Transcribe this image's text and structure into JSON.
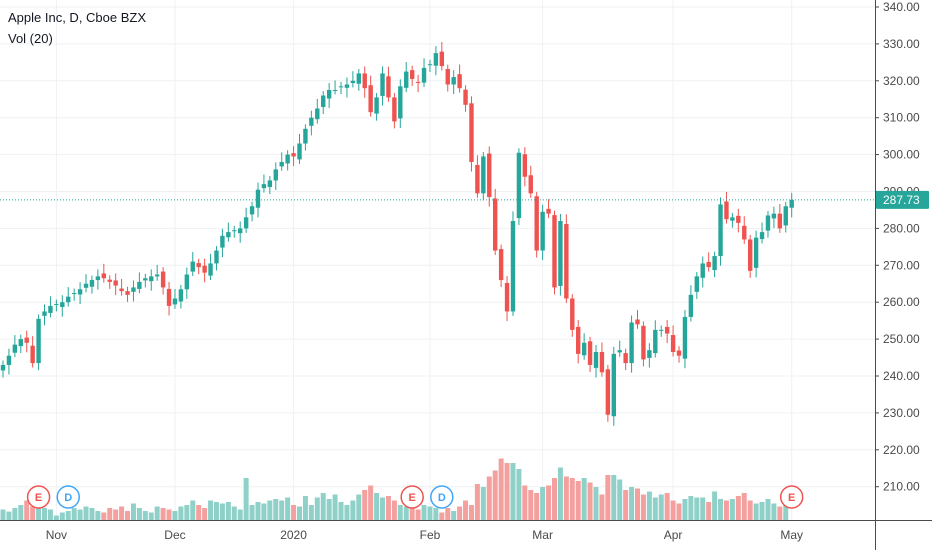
{
  "legend": {
    "symbol_line": "Apple Inc, D, Cboe BZX",
    "indicator_line": "Vol (20)"
  },
  "colors": {
    "up": "#26a69a",
    "down": "#ef5350",
    "volume_up": "#8fd1c8",
    "volume_down": "#f4a09e",
    "grid": "#eef1f4",
    "axis_text": "#4a4a4a",
    "last_price_line": "#26a69a",
    "dividend_event": "#42a5f5",
    "earnings_event": "#ef5350"
  },
  "chart_data": {
    "type": "candlestick",
    "title": "Apple Inc, D, Cboe BZX",
    "y_axis": {
      "range": [
        200,
        343
      ],
      "ticks": [
        "210.00",
        "220.00",
        "230.00",
        "240.00",
        "250.00",
        "260.00",
        "270.00",
        "280.00",
        "290.00",
        "300.00",
        "310.00",
        "320.00",
        "330.00",
        "340.00"
      ],
      "position": "right"
    },
    "x_axis": {
      "ticks": [
        {
          "label": "Nov",
          "bar": 9
        },
        {
          "label": "Dec",
          "bar": 29
        },
        {
          "label": "2020",
          "bar": 49
        },
        {
          "label": "Feb",
          "bar": 72
        },
        {
          "label": "Mar",
          "bar": 91
        },
        {
          "label": "Apr",
          "bar": 113
        },
        {
          "label": "May",
          "bar": 133
        }
      ]
    },
    "last_price": 287.73,
    "grid": true,
    "series": [
      {
        "name": "Apple Inc",
        "closes": [
          243.0,
          245.5,
          248.5,
          250.0,
          249.0,
          243.5,
          255.5,
          257.5,
          259.0,
          259.5,
          260.0,
          261.5,
          262.5,
          263.5,
          265.0,
          266.0,
          267.0,
          266.5,
          265.5,
          264.5,
          263.0,
          262.0,
          264.0,
          265.5,
          266.5,
          267.0,
          267.5,
          264.0,
          259.0,
          261.0,
          263.5,
          267.5,
          271.0,
          269.5,
          268.0,
          270.5,
          274.0,
          278.0,
          279.0,
          279.5,
          280.0,
          283.0,
          286.0,
          290.5,
          292.0,
          293.0,
          296.0,
          298.0,
          300.0,
          299.5,
          303.0,
          307.0,
          310.0,
          312.5,
          316.0,
          317.5,
          317.5,
          318.5,
          319.0,
          320.0,
          322.0,
          318.0,
          311.5,
          315.5,
          322.0,
          315.5,
          309.0,
          318.5,
          322.5,
          320.5,
          319.5,
          323.5,
          324.5,
          327.5,
          324.0,
          319.0,
          321.0,
          318.0,
          313.5,
          298.0,
          289.5,
          299.5,
          288.5,
          274.0,
          266.0,
          257.5,
          282.0,
          300.5,
          294.0,
          289.5,
          274.0,
          284.5,
          284.0,
          264.0,
          282.0,
          261.0,
          252.5,
          246.0,
          249.0,
          243.0,
          246.5,
          241.0,
          229.5,
          246.0,
          247.0,
          243.5,
          254.5,
          254.0,
          244.5,
          247.0,
          252.5,
          252.5,
          251.5,
          246.5,
          245.5,
          256.0,
          262.0,
          267.0,
          270.5,
          269.5,
          272.5,
          286.5,
          282.5,
          283.0,
          281.5,
          277.0,
          268.5,
          277.5,
          279.0,
          283.5,
          284.0,
          280.0,
          286.0,
          287.73
        ],
        "volumes": [
          20.5,
          19.8,
          21.0,
          22.0,
          23.5,
          21.5,
          22.5,
          21.0,
          20.5,
          18.5,
          19.5,
          20.0,
          21.0,
          20.5,
          21.5,
          21.0,
          20.0,
          19.5,
          21.0,
          20.5,
          21.5,
          20.0,
          22.5,
          21.0,
          20.0,
          19.5,
          21.5,
          21.0,
          20.5,
          20.0,
          21.5,
          22.0,
          23.5,
          22.0,
          21.0,
          23.5,
          23.0,
          22.5,
          23.0,
          21.5,
          20.5,
          31.0,
          22.0,
          23.0,
          22.5,
          23.5,
          24.0,
          23.5,
          24.5,
          22.0,
          21.5,
          25.0,
          22.0,
          24.5,
          26.0,
          24.0,
          25.5,
          23.0,
          22.0,
          23.5,
          25.5,
          27.0,
          28.5,
          26.0,
          24.5,
          25.0,
          23.5,
          22.0,
          21.5,
          22.5,
          20.5,
          22.0,
          21.5,
          21.0,
          19.5,
          21.0,
          20.0,
          21.5,
          23.5,
          22.0,
          29.0,
          28.0,
          31.5,
          33.5,
          37.5,
          36.0,
          36.0,
          34.0,
          28.5,
          27.0,
          26.0,
          28.0,
          28.5,
          31.0,
          34.5,
          31.5,
          31.0,
          30.0,
          31.0,
          29.5,
          28.0,
          25.5,
          32.0,
          32.0,
          30.5,
          27.0,
          28.0,
          27.5,
          25.5,
          26.5,
          24.5,
          25.5,
          26.0,
          23.5,
          22.5,
          24.0,
          25.0,
          24.5,
          24.5,
          23.0,
          26.5,
          24.0,
          23.5,
          24.0,
          25.0,
          26.0,
          23.5,
          22.5,
          23.0,
          24.0,
          22.5,
          21.5,
          22.5
        ]
      }
    ]
  },
  "events": [
    {
      "label": "E",
      "type": "earnings",
      "bar": 6
    },
    {
      "label": "D",
      "type": "dividend",
      "bar": 11
    },
    {
      "label": "E",
      "type": "earnings",
      "bar": 69
    },
    {
      "label": "D",
      "type": "dividend",
      "bar": 74
    },
    {
      "label": "E",
      "type": "earnings",
      "bar": 133
    }
  ],
  "price_tag": "287.73"
}
